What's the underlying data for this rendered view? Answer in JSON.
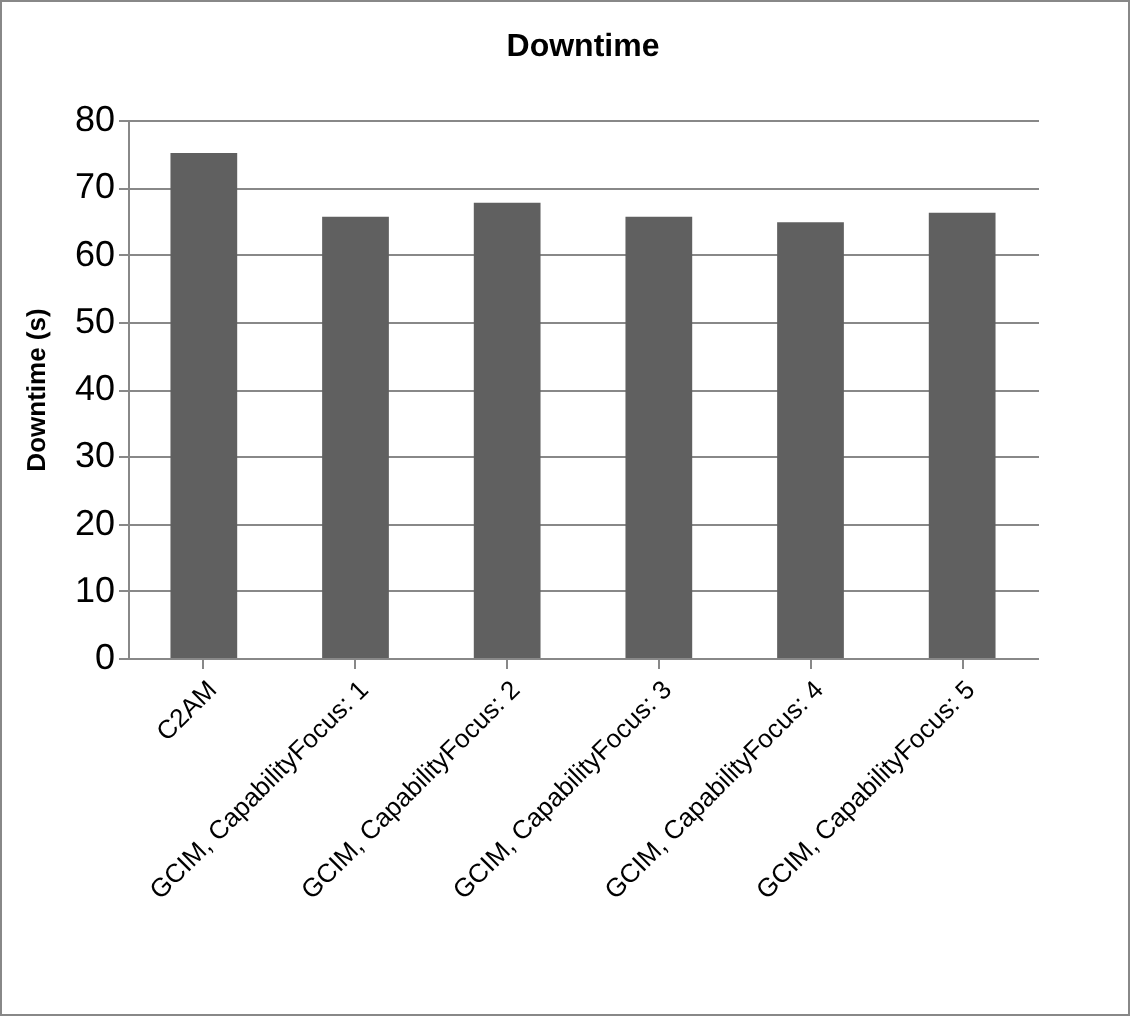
{
  "chart_data": {
    "type": "bar",
    "title": "Downtime",
    "ylabel": "Downtime (s)",
    "categories": [
      "C2AM",
      "GCIM, CapabilityFocus: 1",
      "GCIM, CapabilityFocus: 2",
      "GCIM, CapabilityFocus: 3",
      "GCIM, CapabilityFocus: 4",
      "GCIM, CapabilityFocus: 5"
    ],
    "values": [
      75.1,
      65.6,
      67.7,
      65.6,
      64.8,
      66.2
    ],
    "color": "#606060",
    "ylim": [
      0,
      80
    ],
    "yticks": [
      0,
      10,
      20,
      30,
      40,
      50,
      60,
      70,
      80
    ],
    "grid": "y"
  }
}
